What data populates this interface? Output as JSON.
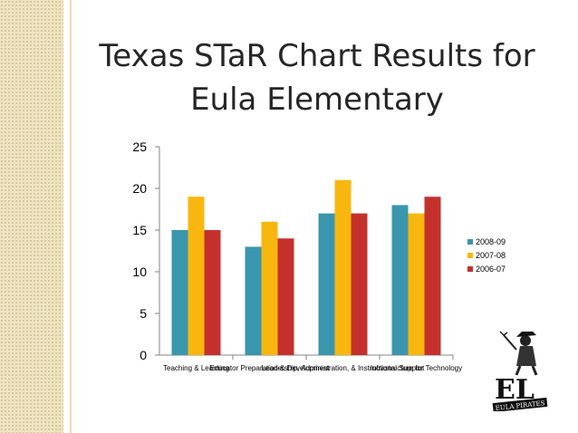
{
  "slide": {
    "title": "Texas STaR Chart Results for Eula Elementary"
  },
  "chart_data": {
    "type": "bar",
    "title": "",
    "xlabel": "",
    "ylabel": "",
    "categories": [
      "Teaching & Learning",
      "Educator Preparation & Development",
      "Leadership, Administration, & Instructional Support",
      "Infrastructure for Technology"
    ],
    "series": [
      {
        "name": "2008-09",
        "color": "#3a96ad",
        "values": [
          15,
          13,
          17,
          18
        ]
      },
      {
        "name": "2007-08",
        "color": "#f8b70e",
        "values": [
          19,
          16,
          21,
          17
        ]
      },
      {
        "name": "2006-07",
        "color": "#c4312c",
        "values": [
          15,
          14,
          17,
          19
        ]
      }
    ],
    "ylim": [
      0,
      25
    ],
    "yticks": [
      0,
      5,
      10,
      15,
      20,
      25
    ],
    "grid": false,
    "legend": "right"
  },
  "logo": {
    "text": "EULA PIRATES",
    "monogram": "EL"
  }
}
